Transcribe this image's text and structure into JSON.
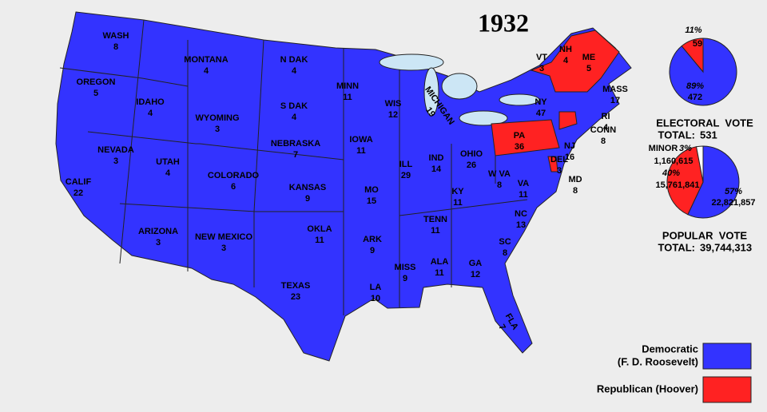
{
  "title": "1932",
  "states": [
    {
      "name": "WASH",
      "votes": 8
    },
    {
      "name": "OREGON",
      "votes": 5
    },
    {
      "name": "CALIF",
      "votes": 22
    },
    {
      "name": "NEVADA",
      "votes": 3
    },
    {
      "name": "IDAHO",
      "votes": 4
    },
    {
      "name": "MONTANA",
      "votes": 4
    },
    {
      "name": "WYOMING",
      "votes": 3
    },
    {
      "name": "UTAH",
      "votes": 4
    },
    {
      "name": "COLORADO",
      "votes": 6
    },
    {
      "name": "ARIZONA",
      "votes": 3
    },
    {
      "name": "NEW MEXICO",
      "votes": 3
    },
    {
      "name": "N DAK",
      "votes": 4
    },
    {
      "name": "S DAK",
      "votes": 4
    },
    {
      "name": "NEBRASKA",
      "votes": 7
    },
    {
      "name": "KANSAS",
      "votes": 9
    },
    {
      "name": "OKLA",
      "votes": 11
    },
    {
      "name": "TEXAS",
      "votes": 23
    },
    {
      "name": "MINN",
      "votes": 11
    },
    {
      "name": "IOWA",
      "votes": 11
    },
    {
      "name": "MO",
      "votes": 15
    },
    {
      "name": "ARK",
      "votes": 9
    },
    {
      "name": "LA",
      "votes": 10
    },
    {
      "name": "WIS",
      "votes": 12
    },
    {
      "name": "ILL",
      "votes": 29
    },
    {
      "name": "MICHIGAN",
      "votes": 19
    },
    {
      "name": "IND",
      "votes": 14
    },
    {
      "name": "OHIO",
      "votes": 26
    },
    {
      "name": "KY",
      "votes": 11
    },
    {
      "name": "TENN",
      "votes": 11
    },
    {
      "name": "MISS",
      "votes": 9
    },
    {
      "name": "ALA",
      "votes": 11
    },
    {
      "name": "GA",
      "votes": 12
    },
    {
      "name": "FLA",
      "votes": 7
    },
    {
      "name": "SC",
      "votes": 8
    },
    {
      "name": "NC",
      "votes": 13
    },
    {
      "name": "VA",
      "votes": 11
    },
    {
      "name": "W VA",
      "votes": 8
    },
    {
      "name": "MD",
      "votes": 8
    },
    {
      "name": "DEL",
      "votes": 3
    },
    {
      "name": "NJ",
      "votes": 16
    },
    {
      "name": "PA",
      "votes": 36
    },
    {
      "name": "NY",
      "votes": 47
    },
    {
      "name": "VT",
      "votes": 3
    },
    {
      "name": "NH",
      "votes": 4
    },
    {
      "name": "ME",
      "votes": 5
    },
    {
      "name": "MASS",
      "votes": 17
    },
    {
      "name": "RI",
      "votes": 4
    },
    {
      "name": "CONN",
      "votes": 8
    }
  ],
  "electoral": {
    "title": "ELECTORAL  VOTE",
    "total_prefix": "TOTAL:",
    "total": 531,
    "slices": [
      {
        "percent": 89,
        "percent_label": "89%",
        "votes": 472,
        "color": "#3333ff"
      },
      {
        "percent": 11,
        "percent_label": "11%",
        "votes": 59,
        "color": "#ff2222"
      }
    ]
  },
  "popular": {
    "title": "POPULAR  VOTE",
    "total_prefix": "TOTAL:",
    "total": {
      "value": 39744313,
      "label": "39,744,313"
    },
    "slices": [
      {
        "percent": 57,
        "percent_label": "57%",
        "votes": 22821857,
        "votes_label": "22,821,857",
        "color": "#3333ff"
      },
      {
        "percent": 40,
        "percent_label": "40%",
        "votes": 15761841,
        "votes_label": "15,761,841",
        "color": "#ff2222"
      },
      {
        "label": "MINOR",
        "percent": 3,
        "percent_label": "3%",
        "votes": 1160615,
        "votes_label": "1,160,615",
        "color": "#ffffff"
      }
    ]
  },
  "legend": [
    {
      "lines": [
        "Democratic",
        "(F. D. Roosevelt)"
      ],
      "color": "#3333ff"
    },
    {
      "lines": [
        "Republican (Hoover)"
      ],
      "color": "#ff2222"
    }
  ]
}
